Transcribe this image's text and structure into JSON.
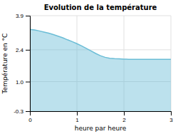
{
  "chart_data": {
    "type": "area",
    "title": "Evolution de la température",
    "xlabel": "heure par heure",
    "ylabel": "Température en °C",
    "x": [
      0,
      0.1,
      0.2,
      0.3,
      0.4,
      0.5,
      0.6,
      0.7,
      0.8,
      0.9,
      1.0,
      1.1,
      1.2,
      1.3,
      1.4,
      1.5,
      1.6,
      1.7,
      1.8,
      1.9,
      2.0,
      2.05,
      2.1,
      2.2,
      2.3,
      2.4,
      2.5,
      2.6,
      2.7,
      2.8,
      2.9,
      3.0
    ],
    "values": [
      3.3,
      3.27,
      3.23,
      3.18,
      3.13,
      3.07,
      3.0,
      2.93,
      2.84,
      2.76,
      2.67,
      2.57,
      2.46,
      2.35,
      2.24,
      2.14,
      2.07,
      2.03,
      2.01,
      2.0,
      1.99,
      1.99,
      1.98,
      1.98,
      1.98,
      1.98,
      1.98,
      1.98,
      1.98,
      1.98,
      1.98,
      1.98
    ],
    "color": "#6bbdd6",
    "xlim": [
      0,
      3
    ],
    "ylim": [
      -0.3,
      3.9
    ],
    "xticks": [
      0,
      1,
      2,
      3
    ],
    "yticks": [
      -0.3,
      {
        "value": 1.0,
        "label": "1.0"
      },
      2.4,
      3.9
    ],
    "grid": true
  }
}
